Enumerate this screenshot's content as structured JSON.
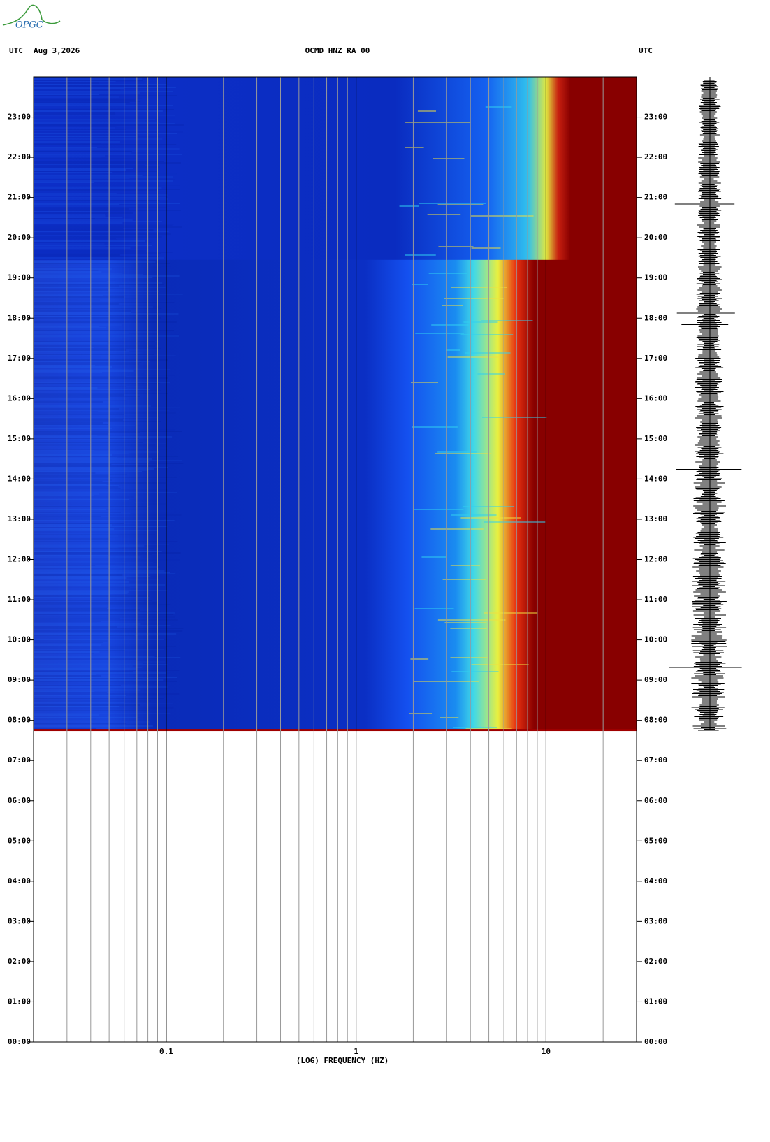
{
  "chart_data": {
    "type": "spectrogram",
    "logo": "OPGC",
    "left_label": "UTC",
    "date": "Aug 3,2026",
    "title": "OCMD HNZ RA 00",
    "right_label": "UTC",
    "xlabel": "(LOG) FREQUENCY (HZ)",
    "xscale": "log",
    "xlim": [
      0.02,
      30
    ],
    "xticks": [
      0.1,
      1,
      10
    ],
    "xgrid_minor": [
      0.03,
      0.04,
      0.05,
      0.06,
      0.07,
      0.08,
      0.09,
      0.2,
      0.3,
      0.4,
      0.5,
      0.6,
      0.7,
      0.8,
      0.9,
      2,
      3,
      4,
      5,
      6,
      7,
      8,
      9,
      20
    ],
    "ylim": [
      0,
      24
    ],
    "yticks": [
      {
        "value": 0,
        "label": "00:00"
      },
      {
        "value": 1,
        "label": "01:00"
      },
      {
        "value": 2,
        "label": "02:00"
      },
      {
        "value": 3,
        "label": "03:00"
      },
      {
        "value": 4,
        "label": "04:00"
      },
      {
        "value": 5,
        "label": "05:00"
      },
      {
        "value": 6,
        "label": "06:00"
      },
      {
        "value": 7,
        "label": "07:00"
      },
      {
        "value": 8,
        "label": "08:00"
      },
      {
        "value": 9,
        "label": "09:00"
      },
      {
        "value": 10,
        "label": "10:00"
      },
      {
        "value": 11,
        "label": "11:00"
      },
      {
        "value": 12,
        "label": "12:00"
      },
      {
        "value": 13,
        "label": "13:00"
      },
      {
        "value": 14,
        "label": "14:00"
      },
      {
        "value": 15,
        "label": "15:00"
      },
      {
        "value": 16,
        "label": "16:00"
      },
      {
        "value": 17,
        "label": "17:00"
      },
      {
        "value": 18,
        "label": "18:00"
      },
      {
        "value": 19,
        "label": "19:00"
      },
      {
        "value": 20,
        "label": "20:00"
      },
      {
        "value": 21,
        "label": "21:00"
      },
      {
        "value": 22,
        "label": "22:00"
      },
      {
        "value": 23,
        "label": "23:00"
      }
    ],
    "spectrum_time_range": [
      7.75,
      24
    ]
  }
}
